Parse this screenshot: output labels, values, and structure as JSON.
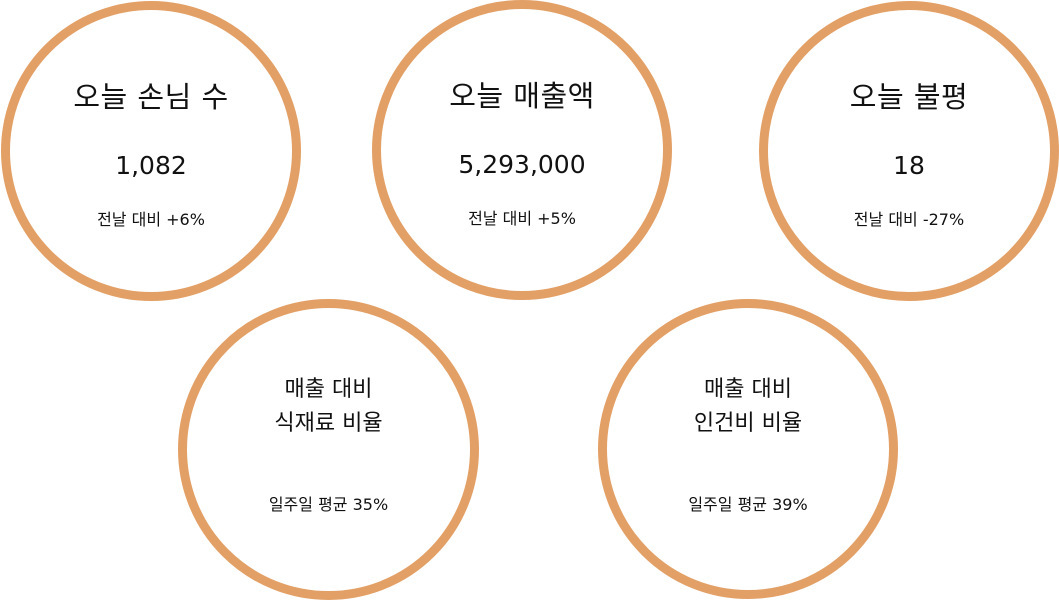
{
  "colors": {
    "ring": "#e3a066",
    "text": "#111111",
    "background": "#ffffff"
  },
  "cards": {
    "guests": {
      "title": "오늘 손님 수",
      "value": "1,082",
      "change": "전날 대비 +6%"
    },
    "sales": {
      "title": "오늘 매출액",
      "value": "5,293,000",
      "change": "전날 대비 +5%"
    },
    "complaints": {
      "title": "오늘 불평",
      "value": "18",
      "change": "전날 대비 -27%"
    },
    "ingredient_ratio": {
      "line1": "매출 대비",
      "line2": "식재료 비율",
      "weekly_average": "일주일 평균 35%"
    },
    "labor_ratio": {
      "line1": "매출 대비",
      "line2": "인건비 비율",
      "weekly_average": "일주일 평균 39%"
    }
  }
}
